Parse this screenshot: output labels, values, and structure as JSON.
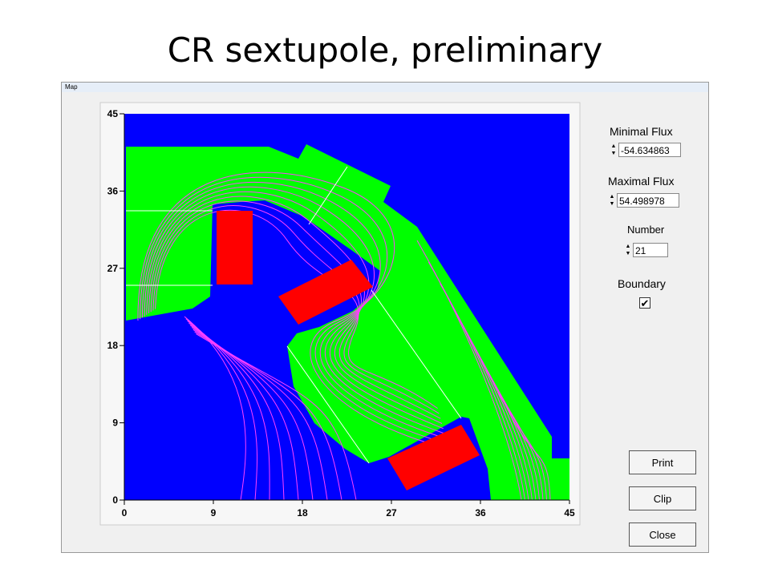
{
  "slide_title": "CR sextupole, preliminary",
  "window": {
    "title": "Map"
  },
  "plot": {
    "xlim": [
      0,
      45
    ],
    "ylim": [
      0,
      45
    ],
    "xticks": [
      0,
      9,
      18,
      27,
      36,
      45
    ],
    "yticks": [
      0,
      9,
      18,
      27,
      36,
      45
    ]
  },
  "controls": {
    "minimal_flux": {
      "label": "Minimal Flux",
      "value": "-54.634863"
    },
    "maximal_flux": {
      "label": "Maximal Flux",
      "value": "54.498978"
    },
    "number": {
      "label": "Number",
      "value": "21"
    },
    "boundary": {
      "label": "Boundary",
      "checked": true
    }
  },
  "buttons": [
    "Print",
    "Clip",
    "Close"
  ]
}
